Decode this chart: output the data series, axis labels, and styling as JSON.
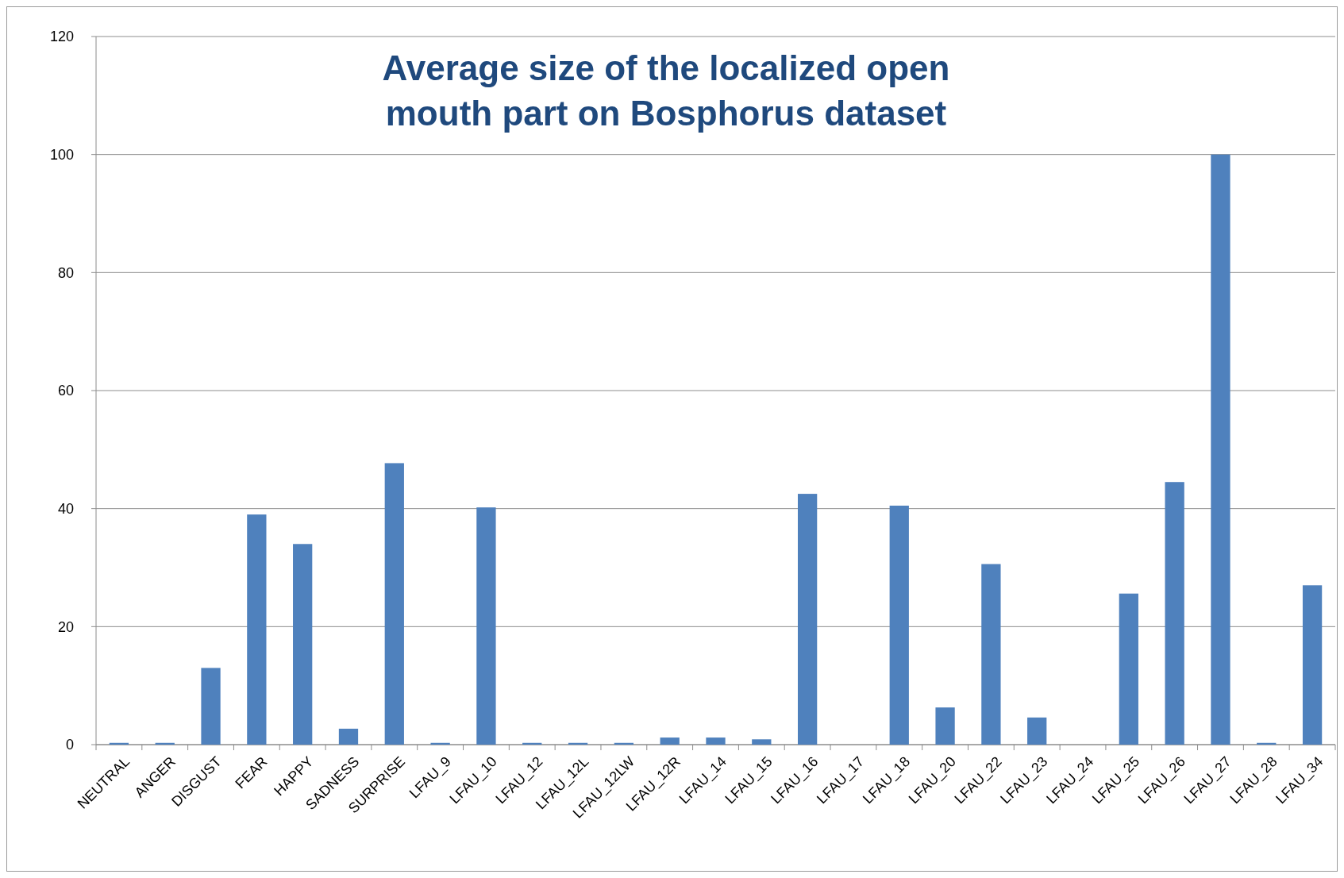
{
  "chart_data": {
    "type": "bar",
    "title": "Average size of the localized open\nmouth part on Bosphorus dataset",
    "categories": [
      "NEUTRAL",
      "ANGER",
      "DISGUST",
      "FEAR",
      "HAPPY",
      "SADNESS",
      "SURPRISE",
      "LFAU_9",
      "LFAU_10",
      "LFAU_12",
      "LFAU_12L",
      "LFAU_12LW",
      "LFAU_12R",
      "LFAU_14",
      "LFAU_15",
      "LFAU_16",
      "LFAU_17",
      "LFAU_18",
      "LFAU_20",
      "LFAU_22",
      "LFAU_23",
      "LFAU_24",
      "LFAU_25",
      "LFAU_26",
      "LFAU_27",
      "LFAU_28",
      "LFAU_34"
    ],
    "values": [
      0.3,
      0.3,
      13,
      39,
      34,
      2.7,
      47.7,
      0.3,
      40.2,
      0.3,
      0.3,
      0.3,
      1.2,
      1.2,
      0.9,
      42.5,
      0,
      40.5,
      6.3,
      30.6,
      4.6,
      0,
      25.6,
      44.5,
      100,
      0.3,
      27
    ],
    "color": "#4f81bd",
    "ylim": [
      0,
      120
    ],
    "yticks": [
      0,
      20,
      40,
      60,
      80,
      100,
      120
    ],
    "grid": "y"
  }
}
